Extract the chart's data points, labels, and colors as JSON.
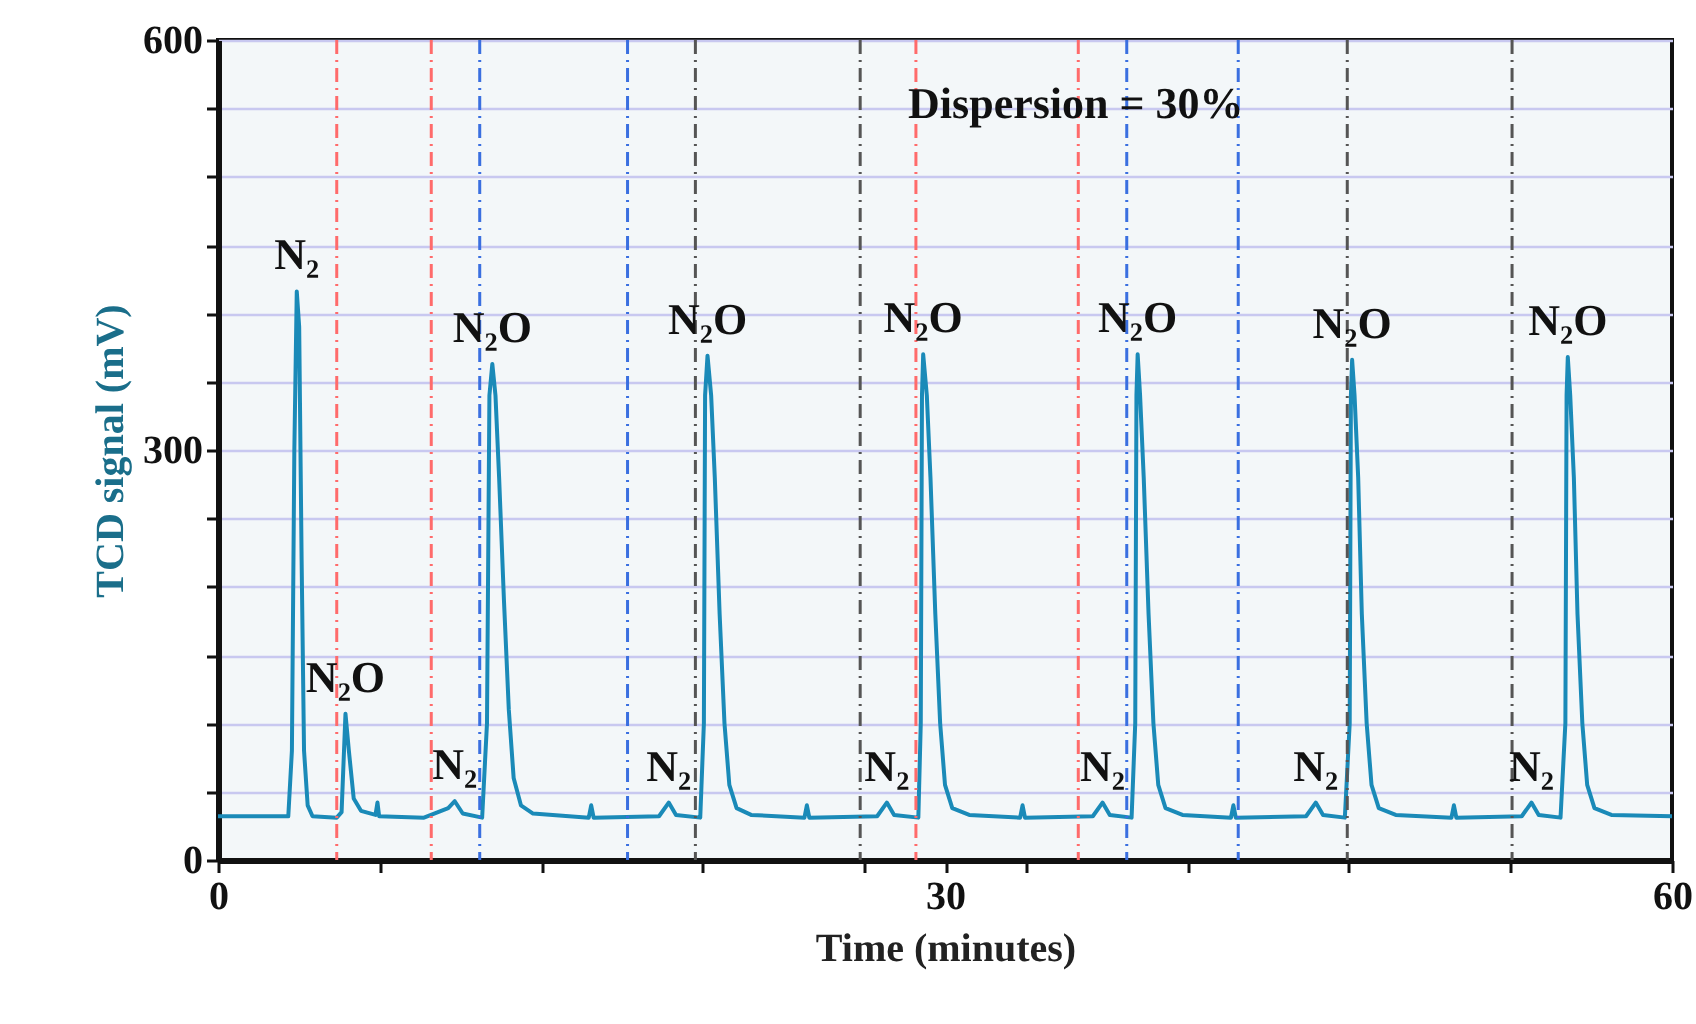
{
  "chart_data": {
    "type": "line",
    "xlabel": "Time (minutes)",
    "ylabel": "TCD signal (mV)",
    "xlim": [
      0,
      60
    ],
    "ylim": [
      0,
      600
    ],
    "xticks": [
      0,
      {
        "value": 6.667,
        "label": null
      },
      {
        "value": 13.333,
        "label": null
      },
      {
        "value": 20,
        "label": null
      },
      {
        "value": 26.667,
        "label": null
      },
      30,
      {
        "value": 33.333,
        "label": null
      },
      {
        "value": 40,
        "label": null
      },
      {
        "value": 46.667,
        "label": null
      },
      {
        "value": 53.333,
        "label": null
      },
      60
    ],
    "yticks": [
      0,
      {
        "value": 50,
        "label": null
      },
      {
        "value": 100,
        "label": null
      },
      {
        "value": 150,
        "label": null
      },
      {
        "value": 200,
        "label": null
      },
      {
        "value": 250,
        "label": null
      },
      300,
      {
        "value": 350,
        "label": null
      },
      {
        "value": 400,
        "label": null
      },
      {
        "value": 450,
        "label": null
      },
      {
        "value": 500,
        "label": null
      },
      {
        "value": 550,
        "label": null
      },
      600
    ],
    "grid": "y",
    "marker": "none",
    "line_style": "solid",
    "series": [
      {
        "color": "#1a8ab8",
        "x": [
          0,
          2.9,
          3.05,
          3.15,
          3.25,
          3.35,
          3.45,
          3.55,
          3.7,
          3.9,
          4.9,
          5.1,
          5.26,
          5.4,
          5.6,
          5.9,
          6.5,
          6.58,
          6.65,
          8.5,
          9.5,
          9.77,
          10.1,
          10.9,
          11.1,
          11.2,
          11.32,
          11.45,
          11.6,
          11.8,
          12.0,
          12.2,
          12.5,
          13.0,
          15.3,
          15.4,
          15.5,
          18.2,
          18.6,
          18.9,
          19.9,
          20.05,
          20.1,
          20.2,
          20.35,
          20.5,
          20.7,
          20.9,
          21.1,
          21.4,
          22.0,
          24.2,
          24.3,
          24.4,
          27.2,
          27.6,
          27.9,
          28.9,
          29.0,
          29.05,
          29.1,
          29.25,
          29.4,
          29.6,
          29.8,
          30.0,
          30.3,
          31.0,
          33.1,
          33.2,
          33.3,
          36.1,
          36.5,
          36.8,
          37.7,
          37.85,
          37.9,
          37.95,
          38.05,
          38.2,
          38.4,
          38.6,
          38.8,
          39.1,
          39.8,
          41.8,
          41.9,
          42.0,
          44.9,
          45.3,
          45.6,
          46.5,
          46.7,
          46.75,
          46.8,
          46.9,
          47.05,
          47.2,
          47.4,
          47.6,
          47.9,
          48.6,
          50.9,
          51.0,
          51.1,
          53.8,
          54.2,
          54.5,
          55.4,
          55.6,
          55.65,
          55.7,
          55.8,
          55.95,
          56.1,
          56.3,
          56.5,
          56.8,
          57.5,
          60
        ],
        "values": [
          32,
          32,
          80,
          300,
          416,
          390,
          220,
          80,
          40,
          32,
          31,
          35,
          107,
          80,
          45,
          36,
          33,
          42,
          32,
          31,
          38,
          43,
          34,
          31,
          100,
          340,
          363,
          340,
          280,
          190,
          110,
          60,
          40,
          34,
          31,
          40,
          31,
          32,
          42,
          33,
          31,
          100,
          340,
          369,
          340,
          280,
          180,
          100,
          55,
          38,
          33,
          31,
          40,
          31,
          32,
          42,
          33,
          31,
          100,
          340,
          370,
          340,
          280,
          180,
          100,
          55,
          38,
          33,
          31,
          40,
          31,
          32,
          42,
          33,
          31,
          100,
          340,
          370,
          340,
          280,
          180,
          100,
          55,
          38,
          33,
          31,
          40,
          31,
          32,
          42,
          33,
          31,
          100,
          340,
          366,
          340,
          280,
          180,
          100,
          55,
          38,
          33,
          31,
          40,
          31,
          32,
          42,
          33,
          31,
          100,
          340,
          368,
          340,
          280,
          180,
          100,
          55,
          38,
          33,
          32
        ]
      }
    ],
    "ref_lines": [
      {
        "axis": "x",
        "value": 4.9,
        "color": "#ff6b6b",
        "line_style": "dashed"
      },
      {
        "axis": "x",
        "value": 8.8,
        "color": "#ff6b6b",
        "line_style": "dashed"
      },
      {
        "axis": "x",
        "value": 10.8,
        "color": "#3a6fe0",
        "line_style": "dashed"
      },
      {
        "axis": "x",
        "value": 16.9,
        "color": "#3a6fe0",
        "line_style": "dashed"
      },
      {
        "axis": "x",
        "value": 19.7,
        "color": "#555555",
        "line_style": "dashed"
      },
      {
        "axis": "x",
        "value": 26.5,
        "color": "#555555",
        "line_style": "dashed"
      },
      {
        "axis": "x",
        "value": 28.8,
        "color": "#ff6b6b",
        "line_style": "dashed"
      },
      {
        "axis": "x",
        "value": 35.5,
        "color": "#ff6b6b",
        "line_style": "dashed"
      },
      {
        "axis": "x",
        "value": 37.5,
        "color": "#3a6fe0",
        "line_style": "dashed"
      },
      {
        "axis": "x",
        "value": 42.1,
        "color": "#3a6fe0",
        "line_style": "dashed"
      },
      {
        "axis": "x",
        "value": 46.6,
        "color": "#555555",
        "line_style": "dashed"
      },
      {
        "axis": "x",
        "value": 53.4,
        "color": "#555555",
        "line_style": "dashed"
      }
    ],
    "annotations": [
      {
        "text": "N₂",
        "x": 3.25,
        "y": 416
      },
      {
        "text": "N₂O",
        "x": 5.26,
        "y": 107
      },
      {
        "text": "N₂O",
        "x": 11.32,
        "y": 363
      },
      {
        "text": "N₂",
        "x": 9.77,
        "y": 43
      },
      {
        "text": "N₂O",
        "x": 20.2,
        "y": 369
      },
      {
        "text": "N₂",
        "x": 18.6,
        "y": 42
      },
      {
        "text": "N₂O",
        "x": 29.1,
        "y": 370
      },
      {
        "text": "N₂",
        "x": 27.6,
        "y": 42
      },
      {
        "text": "N₂O",
        "x": 37.95,
        "y": 370
      },
      {
        "text": "N₂",
        "x": 36.5,
        "y": 42
      },
      {
        "text": "N₂O",
        "x": 46.8,
        "y": 366
      },
      {
        "text": "N₂",
        "x": 45.3,
        "y": 42
      },
      {
        "text": "N₂O",
        "x": 55.7,
        "y": 368
      },
      {
        "text": "N₂",
        "x": 54.2,
        "y": 42
      },
      "Dispersion = 30%"
    ]
  }
}
